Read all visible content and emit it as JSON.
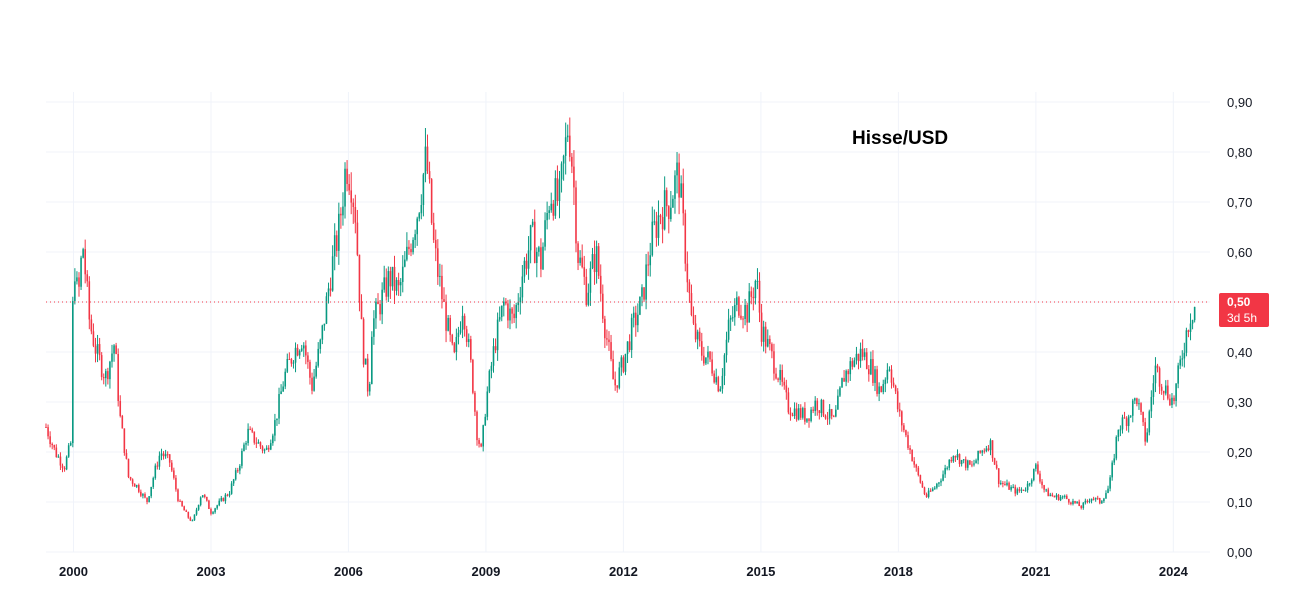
{
  "chart_data": {
    "type": "candlestick",
    "title": "Hisse/USD",
    "xlabel": "",
    "ylabel": "",
    "x_range": [
      1999.4,
      2024.8
    ],
    "ylim": [
      0.0,
      0.9
    ],
    "y_ticks": [
      "0,00",
      "0,10",
      "0,20",
      "0,30",
      "0,40",
      "0,50",
      "0,60",
      "0,70",
      "0,80",
      "0,90"
    ],
    "y_tick_values": [
      0.0,
      0.1,
      0.2,
      0.3,
      0.4,
      0.5,
      0.6,
      0.7,
      0.8,
      0.9
    ],
    "x_ticks": [
      "2000",
      "2003",
      "2006",
      "2009",
      "2012",
      "2015",
      "2018",
      "2021",
      "2024"
    ],
    "x_tick_values": [
      2000,
      2003,
      2006,
      2009,
      2012,
      2015,
      2018,
      2021,
      2024
    ],
    "grid": true,
    "current_price": {
      "value": 0.5,
      "label": "0,50",
      "countdown": "3d 5h",
      "color": "#f23645"
    },
    "up_color": "#089981",
    "down_color": "#f23645",
    "series": [
      {
        "x": [
          1999.4,
          1999.6,
          1999.8,
          1999.95,
          2000.0,
          2000.1,
          2000.2,
          2000.35,
          2000.5,
          2000.7,
          2000.9,
          2001.0,
          2001.2,
          2001.4,
          2001.6,
          2001.8,
          2001.9,
          2002.1,
          2002.3,
          2002.5,
          2002.6,
          2002.8,
          2003.0,
          2003.2,
          2003.4,
          2003.6,
          2003.8,
          2004.0,
          2004.2,
          2004.4,
          2004.6,
          2004.8,
          2005.0,
          2005.2,
          2005.4,
          2005.6,
          2005.8,
          2005.95,
          2006.05,
          2006.15,
          2006.3,
          2006.45,
          2006.5,
          2006.7,
          2006.9,
          2007.1,
          2007.3,
          2007.5,
          2007.7,
          2007.85,
          2007.95,
          2008.1,
          2008.3,
          2008.5,
          2008.7,
          2008.8,
          2008.9,
          2009.0,
          2009.2,
          2009.4,
          2009.6,
          2009.8,
          2010.0,
          2010.2,
          2010.4,
          2010.6,
          2010.8,
          2010.9,
          2011.0,
          2011.2,
          2011.4,
          2011.6,
          2011.8,
          2012.0,
          2012.2,
          2012.4,
          2012.6,
          2012.8,
          2013.0,
          2013.2,
          2013.4,
          2013.5,
          2013.7,
          2013.9,
          2014.1,
          2014.3,
          2014.5,
          2014.7,
          2014.9,
          2015.0,
          2015.2,
          2015.4,
          2015.6,
          2015.8,
          2016.0,
          2016.2,
          2016.4,
          2016.6,
          2016.8,
          2017.0,
          2017.2,
          2017.4,
          2017.6,
          2017.8,
          2018.0,
          2018.2,
          2018.4,
          2018.6,
          2018.8,
          2019.0,
          2019.2,
          2019.4,
          2019.6,
          2019.8,
          2020.0,
          2020.2,
          2020.4,
          2020.6,
          2020.8,
          2021.0,
          2021.2,
          2021.4,
          2021.6,
          2021.8,
          2022.0,
          2022.2,
          2022.4,
          2022.6,
          2022.8,
          2023.0,
          2023.2,
          2023.4,
          2023.6,
          2023.8,
          2024.0,
          2024.2,
          2024.35,
          2024.5
        ],
        "values": [
          0.25,
          0.2,
          0.17,
          0.22,
          0.6,
          0.5,
          0.62,
          0.46,
          0.4,
          0.35,
          0.42,
          0.28,
          0.15,
          0.13,
          0.1,
          0.17,
          0.2,
          0.18,
          0.1,
          0.07,
          0.06,
          0.12,
          0.08,
          0.1,
          0.12,
          0.17,
          0.24,
          0.22,
          0.2,
          0.26,
          0.35,
          0.4,
          0.43,
          0.33,
          0.42,
          0.55,
          0.65,
          0.78,
          0.75,
          0.68,
          0.42,
          0.31,
          0.45,
          0.5,
          0.55,
          0.52,
          0.6,
          0.68,
          0.79,
          0.62,
          0.56,
          0.48,
          0.38,
          0.5,
          0.35,
          0.24,
          0.2,
          0.3,
          0.42,
          0.5,
          0.46,
          0.56,
          0.63,
          0.58,
          0.72,
          0.7,
          0.86,
          0.76,
          0.6,
          0.52,
          0.6,
          0.45,
          0.33,
          0.38,
          0.45,
          0.5,
          0.62,
          0.68,
          0.7,
          0.76,
          0.55,
          0.45,
          0.4,
          0.38,
          0.33,
          0.45,
          0.5,
          0.48,
          0.55,
          0.45,
          0.4,
          0.35,
          0.29,
          0.28,
          0.27,
          0.3,
          0.28,
          0.26,
          0.35,
          0.38,
          0.4,
          0.37,
          0.32,
          0.38,
          0.28,
          0.22,
          0.16,
          0.11,
          0.13,
          0.16,
          0.2,
          0.18,
          0.17,
          0.2,
          0.22,
          0.14,
          0.13,
          0.12,
          0.13,
          0.17,
          0.12,
          0.11,
          0.11,
          0.1,
          0.09,
          0.11,
          0.1,
          0.13,
          0.25,
          0.27,
          0.31,
          0.22,
          0.37,
          0.33,
          0.3,
          0.4,
          0.47,
          0.5
        ]
      }
    ]
  }
}
